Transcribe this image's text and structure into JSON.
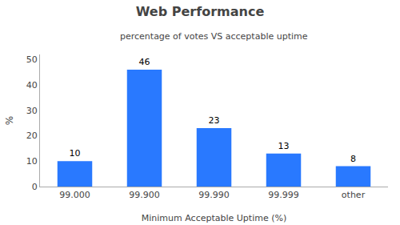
{
  "chart_data": {
    "type": "bar",
    "title": "Web Performance",
    "subtitle": "percentage of votes VS acceptable uptime",
    "xlabel": "Minimum Acceptable Uptime (%)",
    "ylabel": "%",
    "categories": [
      "99.000",
      "99.900",
      "99.990",
      "99.999",
      "other"
    ],
    "values": [
      10,
      46,
      23,
      13,
      8
    ],
    "color": "#2979FF",
    "ylim": [
      0,
      52
    ],
    "yticks": [
      0,
      10,
      20,
      30,
      40,
      50
    ],
    "grid": false,
    "data_labels": true
  }
}
